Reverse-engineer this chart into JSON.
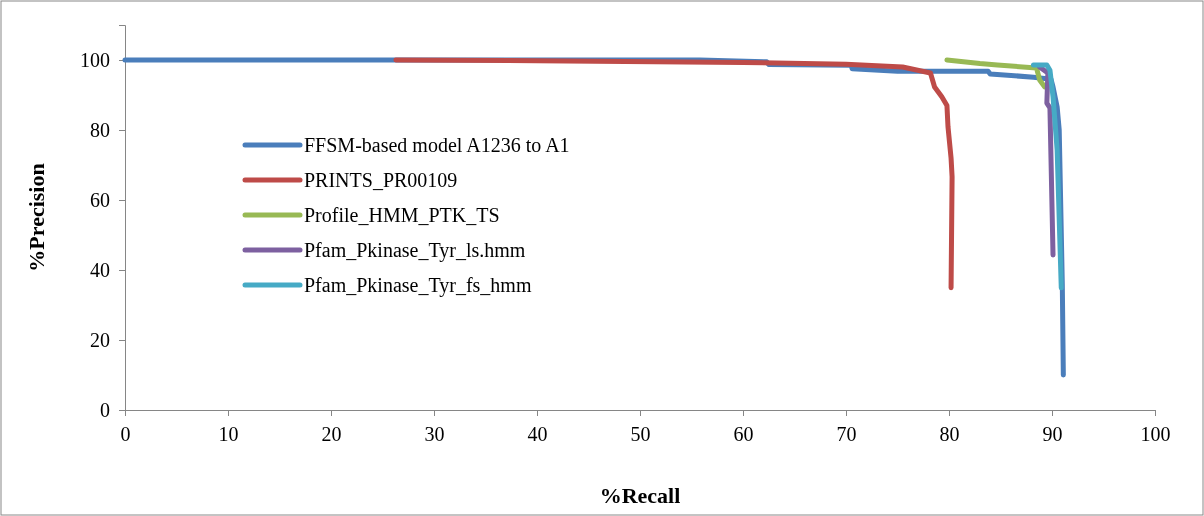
{
  "chart_data": {
    "type": "line",
    "xlabel": "%Recall",
    "ylabel": "%Precision",
    "xlim": [
      0,
      100
    ],
    "ylim": [
      0,
      110
    ],
    "xticks": [
      0,
      10,
      20,
      30,
      40,
      50,
      60,
      70,
      80,
      90,
      100
    ],
    "yticks": [
      0,
      20,
      40,
      60,
      80,
      100
    ],
    "grid": false,
    "legend": "left",
    "marker": "none",
    "line_style": "solid",
    "series": [
      {
        "name": "FFSM-based model A1236 to A1",
        "color": "#4a7ebb",
        "x": [
          0,
          55.8,
          62.3,
          62.5,
          70.5,
          70.6,
          75,
          80,
          83.8,
          84,
          88.2,
          89.9,
          90.1,
          90.5,
          90.7,
          91,
          91.1
        ],
        "values": [
          100,
          100,
          99.5,
          98.7,
          98.5,
          97.5,
          96.8,
          96.8,
          96.8,
          96,
          95.1,
          94.5,
          92.3,
          86.6,
          80,
          36,
          10
        ]
      },
      {
        "name": "PRINTS_PR00109",
        "color": "#be4b48",
        "x": [
          26.3,
          40,
          60,
          70,
          75.5,
          78.2,
          78.6,
          79.3,
          79.8,
          79.9,
          80.2,
          80.3,
          80.2
        ],
        "values": [
          100,
          99.8,
          99.3,
          98.8,
          98,
          96.3,
          92.3,
          89.5,
          87,
          81,
          72,
          66.6,
          34.9
        ]
      },
      {
        "name": "Profile_HMM_PTK_TS",
        "color": "#98b954",
        "x": [
          79.8,
          83,
          84.7,
          88.5,
          88.8,
          89.3
        ],
        "values": [
          100,
          99,
          98.6,
          97.7,
          94.3,
          92.3
        ]
      },
      {
        "name": "Pfam_Pkinase_Tyr_ls.hmm",
        "color": "#7d60a0",
        "x": [
          88.8,
          89.6,
          89.5,
          89.8,
          90.1
        ],
        "values": [
          98,
          96.3,
          87.7,
          86.3,
          44.3
        ]
      },
      {
        "name": "Pfam_Pkinase_Tyr_fs_hmm",
        "color": "#46aac5",
        "x": [
          88.2,
          89.5,
          89.8,
          90.1,
          90.5,
          90.9
        ],
        "values": [
          98.6,
          98.6,
          97.1,
          89.5,
          74.3,
          34.9
        ]
      }
    ]
  }
}
